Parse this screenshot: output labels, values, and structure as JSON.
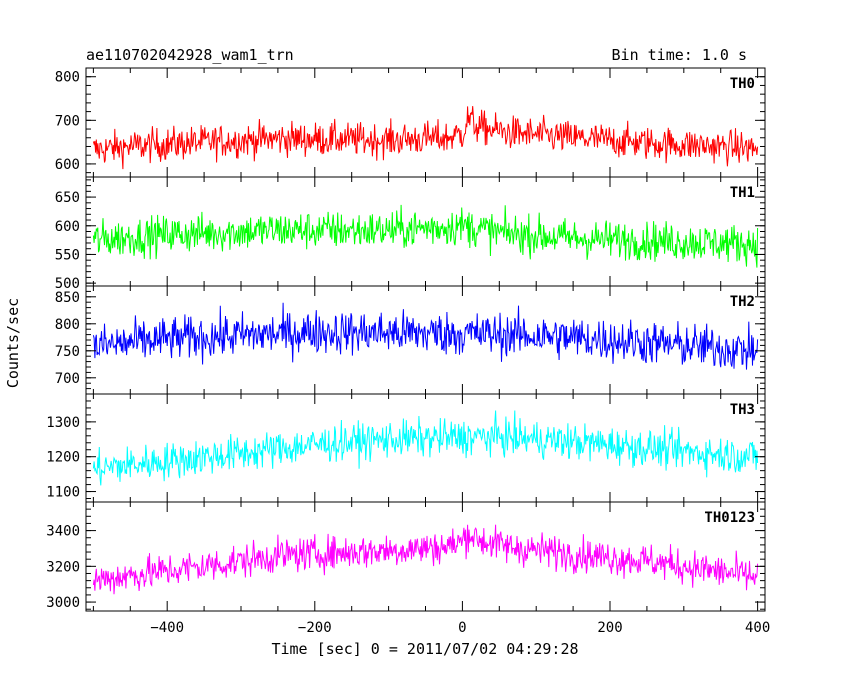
{
  "header": {
    "title": "ae110702042928_wam1_trn",
    "bin_time": "Bin time: 1.0 s"
  },
  "axes": {
    "xlabel": "Time [sec] 0 = 2011/07/02 04:29:28",
    "ylabel": "Counts/sec",
    "x_ticks": [
      "−400",
      "−200",
      "0",
      "200",
      "400"
    ]
  },
  "chart_data": {
    "type": "line",
    "x_range": [
      -510,
      410
    ],
    "x_ticks": [
      -400,
      -200,
      0,
      200,
      400
    ],
    "x_step": 1.0,
    "xlabel": "Time [sec] 0 = 2011/07/02 04:29:28",
    "ylabel": "Counts/sec",
    "grid": false,
    "panels": [
      {
        "name": "TH0",
        "color": "#ff0000",
        "ylim": [
          570,
          820
        ],
        "yticks": [
          600,
          700,
          800
        ],
        "trend": [
          [
            -500,
            632
          ],
          [
            -450,
            640
          ],
          [
            -350,
            650
          ],
          [
            -250,
            658
          ],
          [
            -100,
            655
          ],
          [
            -20,
            660
          ],
          [
            0,
            670
          ],
          [
            8,
            705
          ],
          [
            20,
            685
          ],
          [
            60,
            672
          ],
          [
            150,
            660
          ],
          [
            250,
            648
          ],
          [
            350,
            640
          ],
          [
            400,
            635
          ]
        ],
        "noise_amplitude": 38
      },
      {
        "name": "TH1",
        "color": "#00ff00",
        "ylim": [
          495,
          685
        ],
        "yticks": [
          500,
          550,
          600,
          650
        ],
        "trend": [
          [
            -500,
            575
          ],
          [
            -400,
            585
          ],
          [
            -250,
            592
          ],
          [
            -100,
            592
          ],
          [
            0,
            600
          ],
          [
            50,
            588
          ],
          [
            150,
            578
          ],
          [
            250,
            574
          ],
          [
            400,
            568
          ]
        ],
        "noise_amplitude": 33
      },
      {
        "name": "TH2",
        "color": "#0000ff",
        "ylim": [
          670,
          870
        ],
        "yticks": [
          700,
          750,
          800,
          850
        ],
        "trend": [
          [
            -500,
            758
          ],
          [
            -400,
            772
          ],
          [
            -200,
            785
          ],
          [
            0,
            782
          ],
          [
            100,
            778
          ],
          [
            200,
            770
          ],
          [
            300,
            760
          ],
          [
            400,
            750
          ]
        ],
        "noise_amplitude": 40
      },
      {
        "name": "TH3",
        "color": "#00ffff",
        "ylim": [
          1070,
          1380
        ],
        "yticks": [
          1100,
          1200,
          1300
        ],
        "trend": [
          [
            -500,
            1165
          ],
          [
            -400,
            1188
          ],
          [
            -300,
            1210
          ],
          [
            -200,
            1235
          ],
          [
            -100,
            1250
          ],
          [
            0,
            1255
          ],
          [
            50,
            1258
          ],
          [
            100,
            1250
          ],
          [
            200,
            1235
          ],
          [
            300,
            1215
          ],
          [
            400,
            1200
          ]
        ],
        "noise_amplitude": 52
      },
      {
        "name": "TH0123",
        "color": "#ff00ff",
        "ylim": [
          2950,
          3560
        ],
        "yticks": [
          3000,
          3200,
          3400
        ],
        "trend": [
          [
            -500,
            3120
          ],
          [
            -450,
            3150
          ],
          [
            -350,
            3200
          ],
          [
            -250,
            3260
          ],
          [
            -100,
            3290
          ],
          [
            -20,
            3310
          ],
          [
            0,
            3340
          ],
          [
            8,
            3390
          ],
          [
            20,
            3350
          ],
          [
            60,
            3310
          ],
          [
            150,
            3270
          ],
          [
            250,
            3230
          ],
          [
            350,
            3170
          ],
          [
            400,
            3140
          ]
        ],
        "noise_amplitude": 95
      }
    ]
  }
}
